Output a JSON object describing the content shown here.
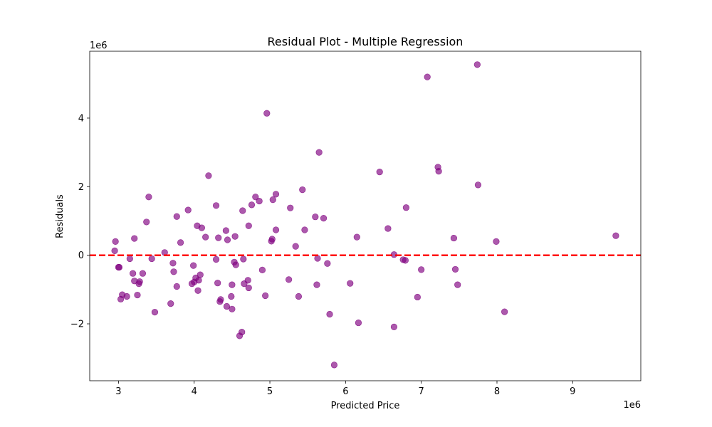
{
  "chart_data": {
    "type": "scatter",
    "title": "Residual Plot - Multiple Regression",
    "xlabel": "Predicted Price",
    "ylabel": "Residuals",
    "x_multiplier_label": "1e6",
    "y_multiplier_label": "1e6",
    "xlim": [
      2.62,
      9.9
    ],
    "ylim": [
      -3.66,
      5.95
    ],
    "x_ticks": [
      3,
      4,
      5,
      6,
      7,
      8,
      9
    ],
    "y_ticks": [
      -2,
      0,
      2,
      4
    ],
    "x_tick_labels": [
      "3",
      "4",
      "5",
      "6",
      "7",
      "8",
      "9"
    ],
    "y_tick_labels": [
      "−2",
      "0",
      "2",
      "4"
    ],
    "grid": false,
    "reference_line": {
      "y": 0,
      "color": "#ff0000",
      "style": "dashed"
    },
    "marker_color": "#800080",
    "points": [
      [
        2.96,
        0.4
      ],
      [
        2.95,
        0.13
      ],
      [
        3.0,
        -0.35
      ],
      [
        3.01,
        -0.35
      ],
      [
        3.03,
        -1.28
      ],
      [
        3.05,
        -1.15
      ],
      [
        3.11,
        -1.2
      ],
      [
        3.15,
        -0.1
      ],
      [
        3.19,
        -0.53
      ],
      [
        3.21,
        0.49
      ],
      [
        3.21,
        -0.75
      ],
      [
        3.25,
        -1.16
      ],
      [
        3.27,
        -0.83
      ],
      [
        3.28,
        -0.77
      ],
      [
        3.32,
        -0.53
      ],
      [
        3.37,
        0.97
      ],
      [
        3.4,
        1.7
      ],
      [
        3.44,
        -0.1
      ],
      [
        3.48,
        -1.66
      ],
      [
        3.61,
        0.08
      ],
      [
        3.69,
        -1.41
      ],
      [
        3.72,
        -0.23
      ],
      [
        3.73,
        -0.48
      ],
      [
        3.77,
        1.13
      ],
      [
        3.77,
        -0.91
      ],
      [
        3.82,
        0.37
      ],
      [
        3.92,
        1.32
      ],
      [
        3.97,
        -0.83
      ],
      [
        3.99,
        -0.3
      ],
      [
        4.0,
        -0.78
      ],
      [
        4.02,
        -0.66
      ],
      [
        4.04,
        0.86
      ],
      [
        4.06,
        -0.73
      ],
      [
        4.05,
        -1.03
      ],
      [
        4.08,
        -0.57
      ],
      [
        4.1,
        0.8
      ],
      [
        4.15,
        0.53
      ],
      [
        4.19,
        2.32
      ],
      [
        4.29,
        -0.12
      ],
      [
        4.29,
        1.45
      ],
      [
        4.31,
        -0.81
      ],
      [
        4.32,
        0.51
      ],
      [
        4.34,
        -1.35
      ],
      [
        4.35,
        -1.29
      ],
      [
        4.42,
        0.72
      ],
      [
        4.43,
        -1.49
      ],
      [
        4.44,
        0.45
      ],
      [
        4.49,
        -1.2
      ],
      [
        4.5,
        -0.86
      ],
      [
        4.5,
        -1.57
      ],
      [
        4.53,
        -0.2
      ],
      [
        4.55,
        -0.28
      ],
      [
        4.54,
        0.55
      ],
      [
        4.6,
        -2.35
      ],
      [
        4.63,
        -2.24
      ],
      [
        4.64,
        1.3
      ],
      [
        4.65,
        -0.11
      ],
      [
        4.66,
        -0.83
      ],
      [
        4.71,
        -0.73
      ],
      [
        4.72,
        0.86
      ],
      [
        4.72,
        -0.95
      ],
      [
        4.76,
        1.47
      ],
      [
        4.81,
        1.7
      ],
      [
        4.86,
        1.58
      ],
      [
        4.9,
        -0.43
      ],
      [
        4.94,
        -1.18
      ],
      [
        4.96,
        4.14
      ],
      [
        5.02,
        0.41
      ],
      [
        5.03,
        0.47
      ],
      [
        5.04,
        1.62
      ],
      [
        5.08,
        1.78
      ],
      [
        5.08,
        0.74
      ],
      [
        5.25,
        -0.71
      ],
      [
        5.27,
        1.38
      ],
      [
        5.34,
        0.26
      ],
      [
        5.38,
        -1.2
      ],
      [
        5.43,
        1.91
      ],
      [
        5.46,
        0.74
      ],
      [
        5.6,
        1.12
      ],
      [
        5.63,
        -0.09
      ],
      [
        5.62,
        -0.86
      ],
      [
        5.65,
        3.0
      ],
      [
        5.71,
        1.08
      ],
      [
        5.76,
        -0.24
      ],
      [
        5.79,
        -1.72
      ],
      [
        5.85,
        -3.2
      ],
      [
        6.06,
        -0.82
      ],
      [
        6.15,
        0.53
      ],
      [
        6.17,
        -1.97
      ],
      [
        6.45,
        2.43
      ],
      [
        6.56,
        0.78
      ],
      [
        6.64,
        0.02
      ],
      [
        6.64,
        -2.09
      ],
      [
        6.76,
        -0.13
      ],
      [
        6.79,
        -0.15
      ],
      [
        6.8,
        1.39
      ],
      [
        6.95,
        -1.22
      ],
      [
        7.0,
        -0.42
      ],
      [
        7.08,
        5.2
      ],
      [
        7.22,
        2.57
      ],
      [
        7.23,
        2.45
      ],
      [
        7.43,
        0.5
      ],
      [
        7.45,
        -0.41
      ],
      [
        7.48,
        -0.86
      ],
      [
        7.74,
        5.56
      ],
      [
        7.75,
        2.05
      ],
      [
        7.99,
        0.4
      ],
      [
        8.1,
        -1.65
      ],
      [
        9.57,
        0.57
      ]
    ]
  }
}
